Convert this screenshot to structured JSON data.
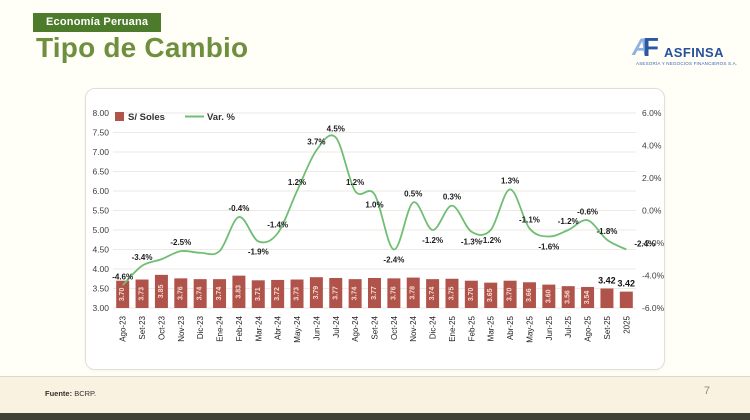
{
  "badge": "Economía Peruana",
  "title": "Tipo de Cambio",
  "logo": {
    "monogram_a": "A",
    "monogram_f": "F",
    "name": "ASFINSA",
    "tagline": "ASESORÍA Y NEGOCIOS FINANCIEROS S.A."
  },
  "footer": {
    "source_label": "Fuente:",
    "source_value": "BCRP.",
    "page_number": "7"
  },
  "colors": {
    "badge_green": "#4C7B2B",
    "title_green": "#6E8F3E",
    "bar": "#B0544B",
    "bar_label": "#F4DAD3",
    "line": "#70BE74",
    "point_label": "#1B1B1B",
    "axis_text": "#3D3D3D",
    "grid": "#ECEAE3",
    "logo_blue": "#2B57A5"
  },
  "chart_data": {
    "type": "bar",
    "subtype": "combo bar+line, dual axis",
    "title": "",
    "grid": true,
    "legend_position": "top-left inside plot",
    "categories": [
      "Ago-23",
      "Set-23",
      "Oct-23",
      "Nov-23",
      "Dic-23",
      "Ene-24",
      "Feb-24",
      "Mar-24",
      "Abr-24",
      "May-24",
      "Jun-24",
      "Jul-24",
      "Ago-24",
      "Set-24",
      "Oct-24",
      "Nov-24",
      "Dic-24",
      "Ene-25",
      "Feb-25",
      "Mar-25",
      "Abr-25",
      "May-25",
      "Jun-25",
      "Jul-25",
      "Ago-25",
      "Set-25",
      "2025"
    ],
    "series": [
      {
        "name": "S/ Soles",
        "type": "bar",
        "axis": "left",
        "values": [
          3.7,
          3.73,
          3.85,
          3.76,
          3.74,
          3.74,
          3.83,
          3.71,
          3.72,
          3.73,
          3.79,
          3.77,
          3.74,
          3.77,
          3.76,
          3.78,
          3.74,
          3.75,
          3.7,
          3.65,
          3.7,
          3.66,
          3.6,
          3.56,
          3.54,
          3.5,
          3.42
        ]
      },
      {
        "name": "Var. %",
        "type": "line",
        "axis": "right",
        "values": [
          -4.6,
          -3.4,
          -3.0,
          -2.5,
          -2.6,
          -2.5,
          -0.4,
          -1.9,
          -1.4,
          1.2,
          3.7,
          4.5,
          1.2,
          1.0,
          -2.4,
          0.5,
          -1.2,
          0.3,
          -1.3,
          -1.2,
          1.3,
          -1.1,
          -1.6,
          -1.2,
          -0.6,
          -1.8,
          -2.4
        ],
        "point_labels": [
          "-4.6%",
          "-3.4%",
          null,
          "-2.5%",
          null,
          null,
          "-0.4%",
          "-1.9%",
          "-1.4%",
          "1.2%",
          "3.7%",
          "4.5%",
          "1.2%",
          "1.0%",
          "-2.4%",
          "0.5%",
          "-1.2%",
          "0.3%",
          "-1.3%",
          "-1.2%",
          "1.3%",
          "-1.1%",
          "-1.6%",
          "-1.2%",
          "-0.6%",
          "-1.8%",
          "-2.4%"
        ],
        "label_positions": [
          "above",
          "above",
          null,
          "above",
          null,
          null,
          "above",
          "below",
          "above",
          "above",
          "above",
          "above",
          "above",
          "below",
          "below",
          "above",
          "below",
          "above",
          "below",
          "below",
          "above",
          "above",
          "below",
          "above",
          "above",
          "above",
          "right"
        ]
      }
    ],
    "left_axis": {
      "min": 3.0,
      "max": 8.0,
      "step": 0.5,
      "ticks": [
        "8.00",
        "7.50",
        "7.00",
        "6.50",
        "6.00",
        "5.50",
        "5.00",
        "4.50",
        "4.00",
        "3.50",
        "3.00"
      ]
    },
    "right_axis": {
      "min": -6.0,
      "max": 6.0,
      "step": 2.0,
      "ticks": [
        "6.0%",
        "4.0%",
        "2.0%",
        "0.0%",
        "-2.0%",
        "-4.0%",
        "-6.0%"
      ]
    },
    "outside_bar_label": "3.42"
  }
}
